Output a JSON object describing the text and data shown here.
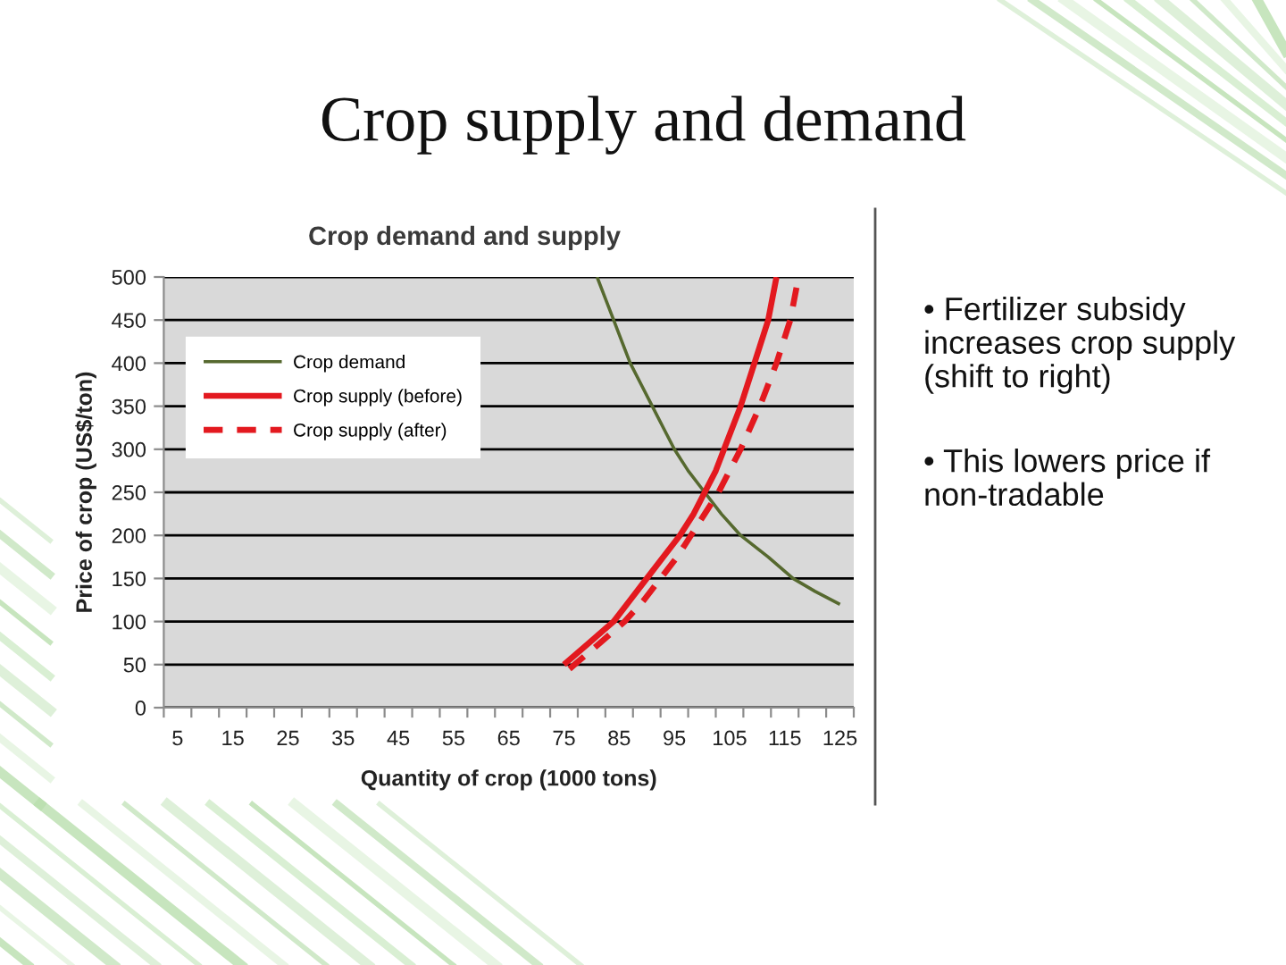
{
  "chart_data": {
    "type": "line",
    "title": "Crop demand and supply",
    "xlabel": "Quantity of crop (1000 tons)",
    "ylabel": "Price of crop (US$/ton)",
    "series": [
      {
        "name": "Crop demand",
        "color": "#56692f",
        "line_style": "solid",
        "x": [
          81,
          82.5,
          84,
          85.5,
          87,
          89,
          91,
          93,
          95,
          97.5,
          100.5,
          103.5,
          107,
          112,
          116.5,
          120.5,
          125
        ],
        "values": [
          500,
          475,
          450,
          425,
          400,
          375,
          350,
          325,
          300,
          275,
          250,
          225,
          200,
          175,
          150,
          135,
          120
        ]
      },
      {
        "name": "Crop supply (before)",
        "color": "#e3191f",
        "line_style": "solid",
        "x": [
          75,
          79.5,
          84,
          87,
          90,
          93,
          96,
          98.5,
          100.5,
          102.5,
          104,
          107,
          109.5,
          112,
          113.5
        ],
        "values": [
          50,
          75,
          100,
          125,
          150,
          175,
          200,
          225,
          250,
          275,
          300,
          350,
          400,
          450,
          500
        ]
      },
      {
        "name": "Crop supply (after)",
        "color": "#e3191f",
        "line_style": "dashed",
        "x": [
          76,
          81.5,
          86,
          89.5,
          92.5,
          95.5,
          98,
          100.5,
          103,
          105,
          107,
          110.5,
          113.5,
          116,
          117.5
        ],
        "values": [
          45,
          75,
          100,
          125,
          150,
          175,
          200,
          225,
          250,
          275,
          300,
          350,
          400,
          450,
          500
        ]
      }
    ],
    "xlim": [
      2.5,
      127.5
    ],
    "xticks": [
      {
        "value": 2.5,
        "label": null
      },
      5,
      {
        "value": 7.5,
        "label": null
      },
      {
        "value": 12.5,
        "label": null
      },
      15,
      {
        "value": 17.5,
        "label": null
      },
      {
        "value": 22.5,
        "label": null
      },
      25,
      {
        "value": 27.5,
        "label": null
      },
      {
        "value": 32.5,
        "label": null
      },
      35,
      {
        "value": 37.5,
        "label": null
      },
      {
        "value": 42.5,
        "label": null
      },
      45,
      {
        "value": 47.5,
        "label": null
      },
      {
        "value": 52.5,
        "label": null
      },
      55,
      {
        "value": 57.5,
        "label": null
      },
      {
        "value": 62.5,
        "label": null
      },
      65,
      {
        "value": 67.5,
        "label": null
      },
      {
        "value": 72.5,
        "label": null
      },
      75,
      {
        "value": 77.5,
        "label": null
      },
      {
        "value": 82.5,
        "label": null
      },
      85,
      {
        "value": 87.5,
        "label": null
      },
      {
        "value": 92.5,
        "label": null
      },
      95,
      {
        "value": 97.5,
        "label": null
      },
      {
        "value": 102.5,
        "label": null
      },
      105,
      {
        "value": 107.5,
        "label": null
      },
      {
        "value": 112.5,
        "label": null
      },
      115,
      {
        "value": 117.5,
        "label": null
      },
      {
        "value": 122.5,
        "label": null
      },
      125,
      {
        "value": 127.5,
        "label": null
      }
    ],
    "ylim": [
      0,
      500
    ],
    "yticks": [
      0,
      50,
      100,
      150,
      200,
      250,
      300,
      350,
      400,
      450,
      500
    ],
    "grid": "y",
    "legend": "top left",
    "annotations": [
      "Crop supply and demand",
      "• Fertilizer subsidy increases crop supply (shift to right)",
      "• This lowers price if non-tradable"
    ]
  }
}
